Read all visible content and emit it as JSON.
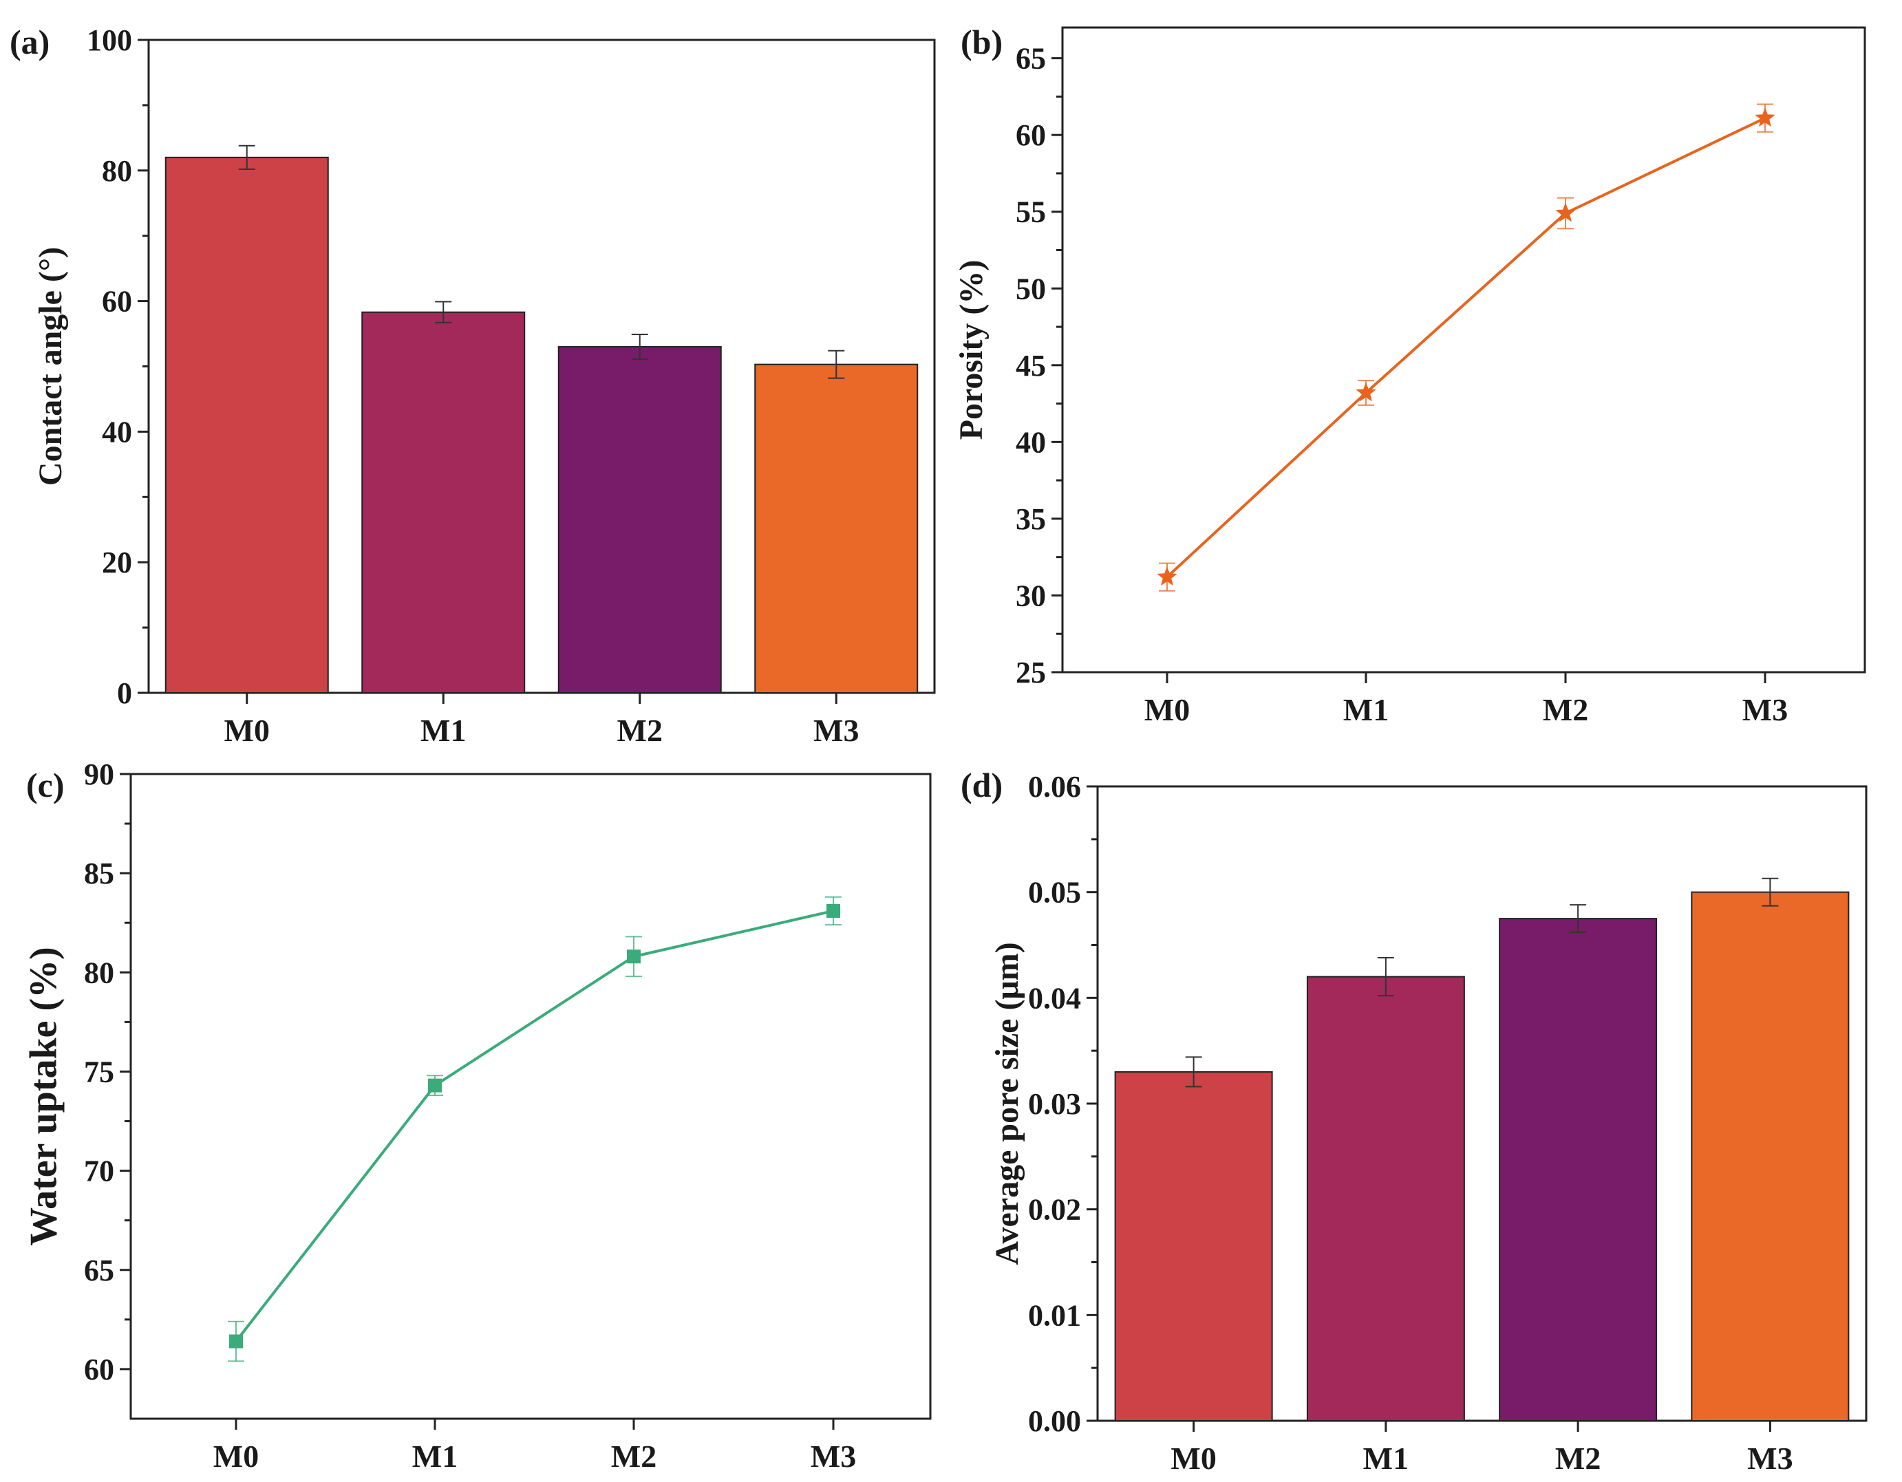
{
  "chart_data": [
    {
      "id": "a",
      "panel_label": "(a)",
      "type": "bar",
      "title": "",
      "xlabel": "",
      "ylabel": "Contact angle (°)",
      "categories": [
        "M0",
        "M1",
        "M2",
        "M3"
      ],
      "values": [
        82,
        58.3,
        53,
        50.3
      ],
      "errors": [
        1.8,
        1.6,
        1.9,
        2.1
      ],
      "colors": [
        "#cc4246",
        "#a22959",
        "#781b68",
        "#ea6828"
      ],
      "ylim": [
        0,
        100
      ],
      "yticks": [
        0,
        20,
        40,
        60,
        80,
        100
      ],
      "ytick_labels": [
        "0",
        "20",
        "40",
        "60",
        "80",
        "100"
      ]
    },
    {
      "id": "b",
      "panel_label": "(b)",
      "type": "line",
      "marker": "star",
      "title": "",
      "xlabel": "",
      "ylabel": "Porosity (%)",
      "categories": [
        "M0",
        "M1",
        "M2",
        "M3"
      ],
      "values": [
        31.2,
        43.2,
        54.9,
        61.1
      ],
      "errors": [
        0.9,
        0.8,
        1.0,
        0.9
      ],
      "color": "#e8641e",
      "ylim": [
        25,
        67
      ],
      "yticks": [
        25,
        30,
        35,
        40,
        45,
        50,
        55,
        60,
        65
      ],
      "ytick_labels": [
        "25",
        "30",
        "35",
        "40",
        "45",
        "50",
        "55",
        "60",
        "65"
      ]
    },
    {
      "id": "c",
      "panel_label": "(c)",
      "type": "line",
      "marker": "square",
      "title": "",
      "xlabel": "",
      "ylabel": "Water uptake (%)",
      "categories": [
        "M0",
        "M1",
        "M2",
        "M3"
      ],
      "values": [
        61.4,
        74.3,
        80.8,
        83.1
      ],
      "errors": [
        1.0,
        0.5,
        1.0,
        0.7
      ],
      "color": "#3aab7a",
      "ylim": [
        57.5,
        90
      ],
      "yticks": [
        60,
        65,
        70,
        75,
        80,
        85,
        90
      ],
      "ytick_labels": [
        "60",
        "65",
        "70",
        "75",
        "80",
        "85",
        "90"
      ]
    },
    {
      "id": "d",
      "panel_label": "(d)",
      "type": "bar",
      "title": "",
      "xlabel": "",
      "ylabel": "Average pore size (μm)",
      "categories": [
        "M0",
        "M1",
        "M2",
        "M3"
      ],
      "values": [
        0.033,
        0.042,
        0.0475,
        0.05
      ],
      "errors": [
        0.0014,
        0.0018,
        0.0013,
        0.0013
      ],
      "colors": [
        "#cc4246",
        "#a22959",
        "#781b68",
        "#ea6828"
      ],
      "ylim": [
        0,
        0.06
      ],
      "yticks": [
        0,
        0.01,
        0.02,
        0.03,
        0.04,
        0.05,
        0.06
      ],
      "ytick_labels": [
        "0.00",
        "0.01",
        "0.02",
        "0.03",
        "0.04",
        "0.05",
        "0.06"
      ]
    }
  ]
}
